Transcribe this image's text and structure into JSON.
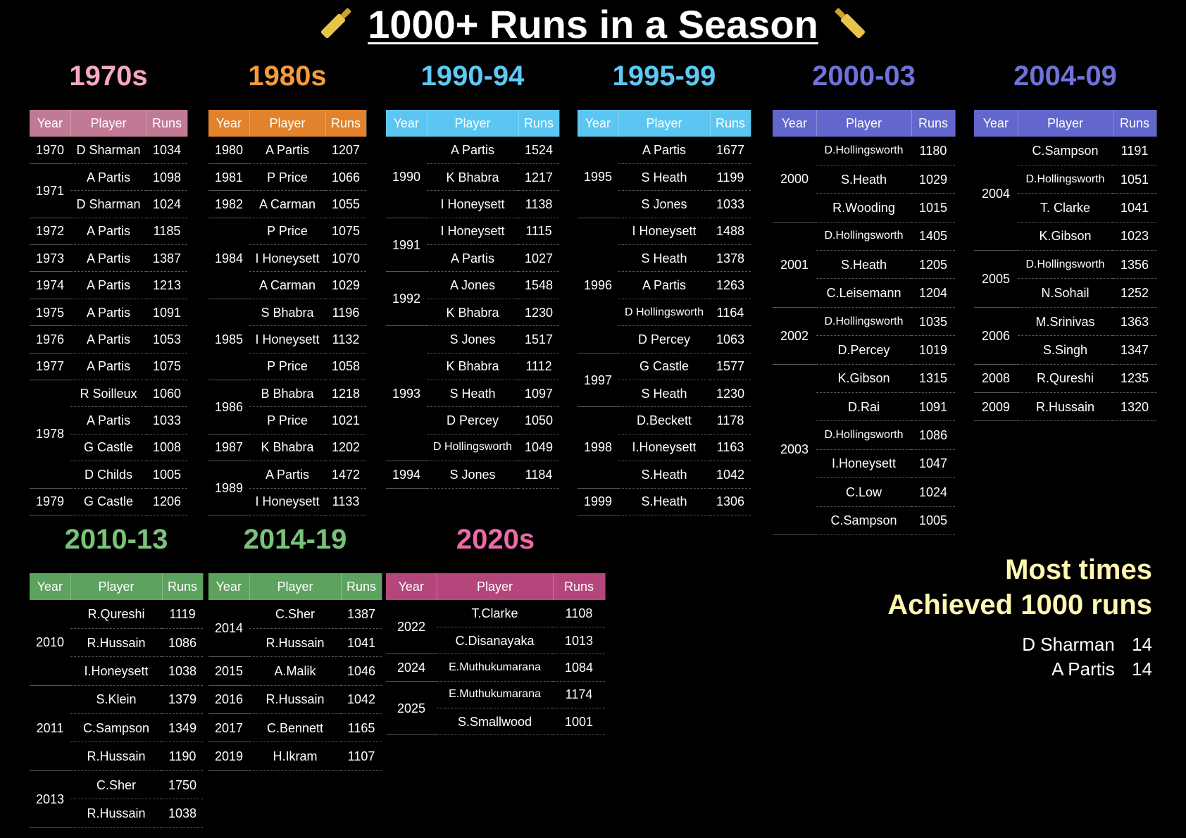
{
  "title": "1000+ Runs in a Season",
  "header": {
    "year": "Year",
    "player": "Player",
    "runs": "Runs"
  },
  "panels": [
    {
      "title": "1970s",
      "title_color": "#f7a7c6",
      "header_color": "#c17a95",
      "groups": [
        {
          "year": "1970",
          "rows": [
            [
              "D Sharman",
              "1034"
            ]
          ]
        },
        {
          "year": "1971",
          "rows": [
            [
              "A Partis",
              "1098"
            ],
            [
              "D Sharman",
              "1024"
            ]
          ]
        },
        {
          "year": "1972",
          "rows": [
            [
              "A Partis",
              "1185"
            ]
          ]
        },
        {
          "year": "1973",
          "rows": [
            [
              "A Partis",
              "1387"
            ]
          ]
        },
        {
          "year": "1974",
          "rows": [
            [
              "A Partis",
              "1213"
            ]
          ]
        },
        {
          "year": "1975",
          "rows": [
            [
              "A Partis",
              "1091"
            ]
          ]
        },
        {
          "year": "1976",
          "rows": [
            [
              "A Partis",
              "1053"
            ]
          ]
        },
        {
          "year": "1977",
          "rows": [
            [
              "A Partis",
              "1075"
            ]
          ]
        },
        {
          "year": "1978",
          "rows": [
            [
              "R Soilleux",
              "1060"
            ],
            [
              "A Partis",
              "1033"
            ],
            [
              "G Castle",
              "1008"
            ],
            [
              "D Childs",
              "1005"
            ]
          ]
        },
        {
          "year": "1979",
          "rows": [
            [
              "G Castle",
              "1206"
            ]
          ]
        }
      ]
    },
    {
      "title": "1980s",
      "title_color": "#f59a3e",
      "header_color": "#e2822d",
      "groups": [
        {
          "year": "1980",
          "rows": [
            [
              "A Partis",
              "1207"
            ]
          ]
        },
        {
          "year": "1981",
          "rows": [
            [
              "P Price",
              "1066"
            ]
          ]
        },
        {
          "year": "1982",
          "rows": [
            [
              "A Carman",
              "1055"
            ]
          ]
        },
        {
          "year": "1984",
          "rows": [
            [
              "P Price",
              "1075"
            ],
            [
              "I Honeysett",
              "1070"
            ],
            [
              "A Carman",
              "1029"
            ]
          ]
        },
        {
          "year": "1985",
          "rows": [
            [
              "S Bhabra",
              "1196"
            ],
            [
              "I Honeysett",
              "1132"
            ],
            [
              "P Price",
              "1058"
            ]
          ]
        },
        {
          "year": "1986",
          "rows": [
            [
              "B Bhabra",
              "1218"
            ],
            [
              "P Price",
              "1021"
            ]
          ]
        },
        {
          "year": "1987",
          "rows": [
            [
              "K Bhabra",
              "1202"
            ]
          ]
        },
        {
          "year": "1989",
          "rows": [
            [
              "A Partis",
              "1472"
            ],
            [
              "I Honeysett",
              "1133"
            ]
          ]
        }
      ]
    },
    {
      "title": "1990-94",
      "title_color": "#5fc8f4",
      "header_color": "#5cc6f2",
      "groups": [
        {
          "year": "1990",
          "rows": [
            [
              "A Partis",
              "1524"
            ],
            [
              "K Bhabra",
              "1217"
            ],
            [
              "I Honeysett",
              "1138"
            ]
          ]
        },
        {
          "year": "1991",
          "rows": [
            [
              "I Honeysett",
              "1115"
            ],
            [
              "A Partis",
              "1027"
            ]
          ]
        },
        {
          "year": "1992",
          "rows": [
            [
              "A Jones",
              "1548"
            ],
            [
              "K Bhabra",
              "1230"
            ]
          ]
        },
        {
          "year": "1993",
          "rows": [
            [
              "S Jones",
              "1517"
            ],
            [
              "K Bhabra",
              "1112"
            ],
            [
              "S Heath",
              "1097"
            ],
            [
              "D Percey",
              "1050"
            ],
            [
              "D Hollingsworth",
              "1049"
            ]
          ]
        },
        {
          "year": "1994",
          "rows": [
            [
              "S Jones",
              "1184"
            ]
          ]
        }
      ]
    },
    {
      "title": "1995-99",
      "title_color": "#5fc8f4",
      "header_color": "#5cc6f2",
      "groups": [
        {
          "year": "1995",
          "rows": [
            [
              "A Partis",
              "1677"
            ],
            [
              "S Heath",
              "1199"
            ],
            [
              "S Jones",
              "1033"
            ]
          ]
        },
        {
          "year": "1996",
          "rows": [
            [
              "I Honeysett",
              "1488"
            ],
            [
              "S Heath",
              "1378"
            ],
            [
              "A Partis",
              "1263"
            ],
            [
              "D Hollingsworth",
              "1164"
            ],
            [
              "D Percey",
              "1063"
            ]
          ]
        },
        {
          "year": "1997",
          "rows": [
            [
              "G Castle",
              "1577"
            ],
            [
              "S Heath",
              "1230"
            ]
          ]
        },
        {
          "year": "1998",
          "rows": [
            [
              "D.Beckett",
              "1178"
            ],
            [
              "I.Honeysett",
              "1163"
            ],
            [
              "S.Heath",
              "1042"
            ]
          ]
        },
        {
          "year": "1999",
          "rows": [
            [
              "S.Heath",
              "1306"
            ]
          ]
        }
      ]
    },
    {
      "title": "2000-03",
      "title_color": "#6f72d8",
      "header_color": "#6366cc",
      "groups": [
        {
          "year": "2000",
          "rows": [
            [
              "D.Hollingsworth",
              "1180"
            ],
            [
              "S.Heath",
              "1029"
            ],
            [
              "R.Wooding",
              "1015"
            ]
          ]
        },
        {
          "year": "2001",
          "rows": [
            [
              "D.Hollingsworth",
              "1405"
            ],
            [
              "S.Heath",
              "1205"
            ],
            [
              "C.Leisemann",
              "1204"
            ]
          ]
        },
        {
          "year": "2002",
          "rows": [
            [
              "D.Hollingsworth",
              "1035"
            ],
            [
              "D.Percey",
              "1019"
            ]
          ]
        },
        {
          "year": "2003",
          "rows": [
            [
              "K.Gibson",
              "1315"
            ],
            [
              "D.Rai",
              "1091"
            ],
            [
              "D.Hollingsworth",
              "1086"
            ],
            [
              "I.Honeysett",
              "1047"
            ],
            [
              "C.Low",
              "1024"
            ],
            [
              "C.Sampson",
              "1005"
            ]
          ]
        }
      ]
    },
    {
      "title": "2004-09",
      "title_color": "#6f72d8",
      "header_color": "#6366cc",
      "groups": [
        {
          "year": "2004",
          "rows": [
            [
              "C.Sampson",
              "1191"
            ],
            [
              "D.Hollingsworth",
              "1051"
            ],
            [
              "T. Clarke",
              "1041"
            ],
            [
              "K.Gibson",
              "1023"
            ]
          ]
        },
        {
          "year": "2005",
          "rows": [
            [
              "D.Hollingsworth",
              "1356"
            ],
            [
              "N.Sohail",
              "1252"
            ]
          ]
        },
        {
          "year": "2006",
          "rows": [
            [
              "M.Srinivas",
              "1363"
            ],
            [
              "S.Singh",
              "1347"
            ]
          ]
        },
        {
          "year": "2008",
          "rows": [
            [
              "R.Qureshi",
              "1235"
            ]
          ]
        },
        {
          "year": "2009",
          "rows": [
            [
              "R.Hussain",
              "1320"
            ]
          ]
        }
      ]
    },
    {
      "title": "2010-13",
      "title_color": "#79c27a",
      "header_color": "#5ea25f",
      "groups": [
        {
          "year": "2010",
          "rows": [
            [
              "R.Qureshi",
              "1119"
            ],
            [
              "R.Hussain",
              "1086"
            ],
            [
              "I.Honeysett",
              "1038"
            ]
          ]
        },
        {
          "year": "2011",
          "rows": [
            [
              "S.Klein",
              "1379"
            ],
            [
              "C.Sampson",
              "1349"
            ],
            [
              "R.Hussain",
              "1190"
            ]
          ]
        },
        {
          "year": "2013",
          "rows": [
            [
              "C.Sher",
              "1750"
            ],
            [
              "R.Hussain",
              "1038"
            ]
          ]
        }
      ]
    },
    {
      "title": "2014-19",
      "title_color": "#79c27a",
      "header_color": "#5ea25f",
      "groups": [
        {
          "year": "2014",
          "rows": [
            [
              "C.Sher",
              "1387"
            ],
            [
              "R.Hussain",
              "1041"
            ]
          ]
        },
        {
          "year": "2015",
          "rows": [
            [
              "A.Malik",
              "1046"
            ]
          ]
        },
        {
          "year": "2016",
          "rows": [
            [
              "R.Hussain",
              "1042"
            ]
          ]
        },
        {
          "year": "2017",
          "rows": [
            [
              "C.Bennett",
              "1165"
            ]
          ]
        },
        {
          "year": "2019",
          "rows": [
            [
              "H.Ikram",
              "1107"
            ]
          ]
        }
      ]
    },
    {
      "title": "2020s",
      "title_color": "#ee6aa7",
      "header_color": "#b5467b",
      "groups": [
        {
          "year": "2022",
          "rows": [
            [
              "T.Clarke",
              "1108"
            ],
            [
              "C.Disanayaka",
              "1013"
            ]
          ]
        },
        {
          "year": "2024",
          "rows": [
            [
              "E.Muthukumarana",
              "1084"
            ]
          ]
        },
        {
          "year": "2025",
          "rows": [
            [
              "E.Muthukumarana",
              "1174"
            ],
            [
              "S.Smallwood",
              "1001"
            ]
          ]
        }
      ]
    }
  ],
  "most_times": {
    "line1": "Most times",
    "line2": "Achieved 1000 runs",
    "entries": [
      {
        "player": "D Sharman",
        "count": "14"
      },
      {
        "player": "A Partis",
        "count": "14"
      }
    ]
  }
}
